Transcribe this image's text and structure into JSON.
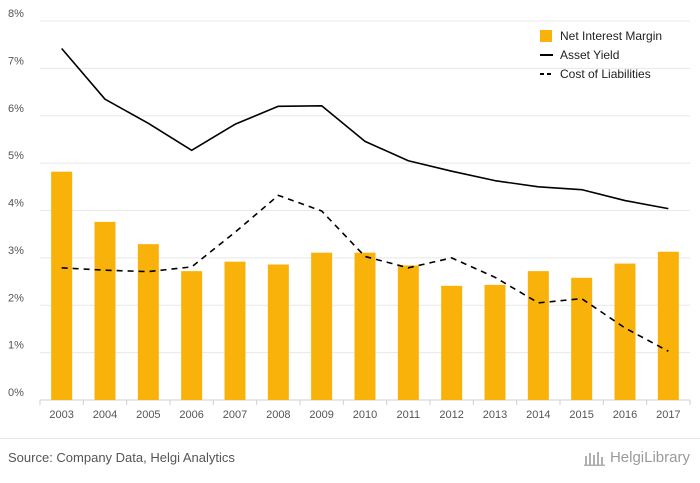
{
  "chart_data": {
    "type": "bar",
    "categories": [
      "2003",
      "2004",
      "2005",
      "2006",
      "2007",
      "2008",
      "2009",
      "2010",
      "2011",
      "2012",
      "2013",
      "2014",
      "2015",
      "2016",
      "2017"
    ],
    "series": [
      {
        "name": "Net Interest Margin",
        "kind": "bar",
        "color": "#F9B20A",
        "values": [
          4.82,
          3.76,
          3.29,
          2.72,
          2.92,
          2.86,
          3.11,
          3.11,
          2.84,
          2.41,
          2.43,
          2.72,
          2.58,
          2.88,
          3.13
        ]
      },
      {
        "name": "Asset Yield",
        "kind": "line",
        "style": "solid",
        "color": "#000000",
        "values": [
          7.42,
          6.35,
          5.84,
          5.27,
          5.82,
          6.2,
          6.21,
          5.46,
          5.05,
          4.83,
          4.63,
          4.5,
          4.44,
          4.21,
          4.04
        ]
      },
      {
        "name": "Cost of Liabilities",
        "kind": "line",
        "style": "dashed",
        "color": "#000000",
        "values": [
          2.79,
          2.74,
          2.71,
          2.81,
          3.54,
          4.32,
          3.99,
          3.03,
          2.79,
          3.0,
          2.59,
          2.05,
          2.14,
          1.52,
          1.03
        ]
      }
    ],
    "y_ticks": [
      "0%",
      "1%",
      "2%",
      "3%",
      "4%",
      "5%",
      "6%",
      "7%",
      "8%"
    ],
    "ylim": [
      0,
      8
    ],
    "grid": true,
    "legend_position": "top-right"
  },
  "footer": {
    "source": "Source: Company Data, Helgi Analytics",
    "brand": "HelgiLibrary"
  }
}
